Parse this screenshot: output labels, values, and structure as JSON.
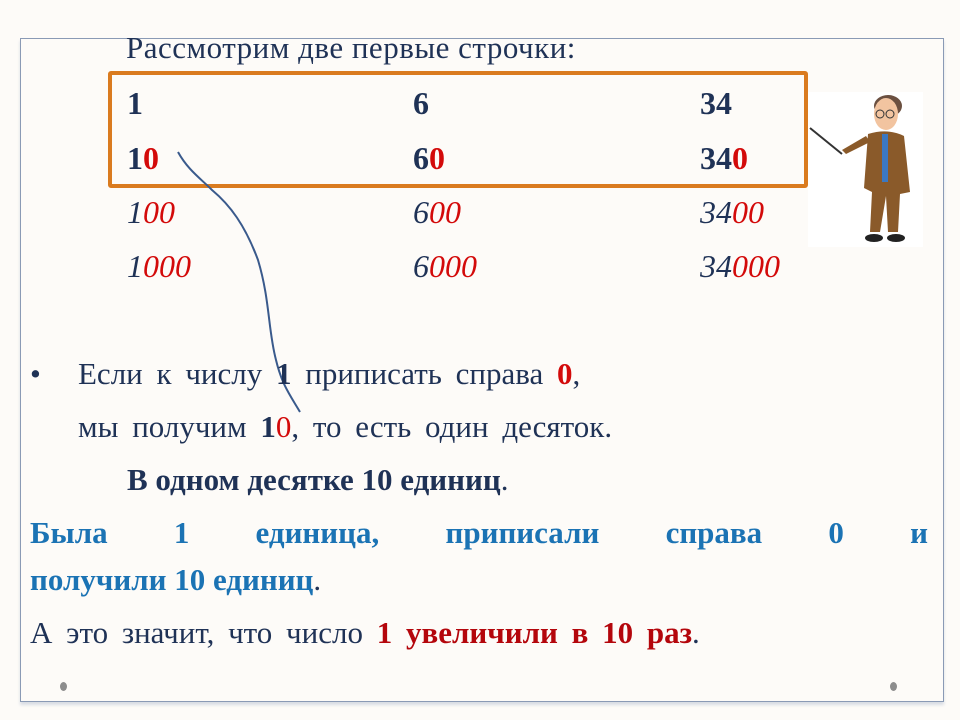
{
  "title": "Рассмотрим  две  первые  строчки:",
  "rows": [
    [
      {
        "base": "1",
        "zeros": ""
      },
      {
        "base": "6",
        "zeros": ""
      },
      {
        "base": "34",
        "zeros": ""
      }
    ],
    [
      {
        "base": "1",
        "zeros": "0"
      },
      {
        "base": "6",
        "zeros": "0"
      },
      {
        "base": "34",
        "zeros": "0"
      }
    ],
    [
      {
        "base": "1",
        "zeros": "00"
      },
      {
        "base": "6",
        "zeros": "00"
      },
      {
        "base": "34",
        "zeros": "00"
      }
    ],
    [
      {
        "base": "1",
        "zeros": "000"
      },
      {
        "base": "6",
        "zeros": "000"
      },
      {
        "base": "34",
        "zeros": "000"
      }
    ]
  ],
  "bullet": {
    "line1_a": "Если  к  числу",
    "line1_num": "1",
    "line1_b": "приписать  справа",
    "line1_zero": "0",
    "line1_c": ",",
    "line2_a": "мы  получим",
    "line2_num": "1",
    "line2_zero": "0",
    "line2_b": ",  то  есть  один  десяток."
  },
  "bold_line": {
    "text": "В  одном  десятке  10  единиц",
    "dot": "."
  },
  "blue_line1": [
    "Была",
    "1",
    "единица,",
    "приписали",
    "справа",
    "0",
    "и"
  ],
  "blue_line2": {
    "text": "получили  10  единиц",
    "dot": "."
  },
  "conclusion": {
    "a": "А   это  значит,  что  число",
    "b": "1  увеличили  в  10  раз",
    "dot": "."
  },
  "colors": {
    "text": "#1f3256",
    "red": "#d30a0a",
    "blue": "#1b73b4",
    "highlight_box": "#da7b1f"
  }
}
